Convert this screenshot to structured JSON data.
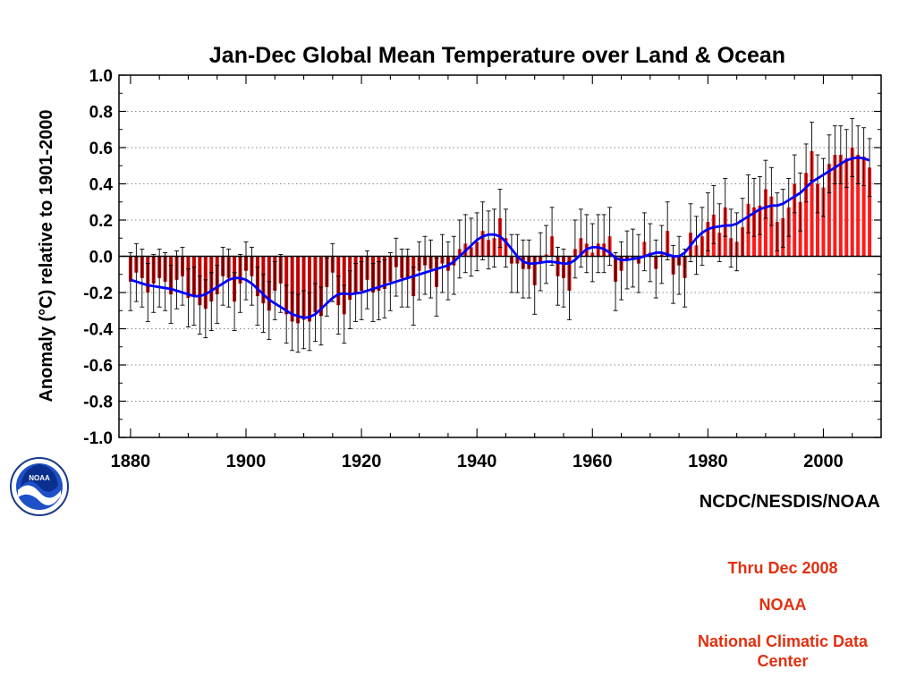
{
  "chart_data": {
    "type": "bar",
    "title": "Jan-Dec Global Mean Temperature over Land & Ocean",
    "ylabel": "Anomaly (°C) relative to 1901-2000",
    "xlabel": "",
    "credit": "NCDC/NESDIS/NOAA",
    "xlim": [
      1878,
      2010
    ],
    "ylim": [
      -1.0,
      1.0
    ],
    "x_ticks": [
      1880,
      1900,
      1920,
      1940,
      1960,
      1980,
      2000
    ],
    "y_ticks": [
      -1.0,
      -0.8,
      -0.6,
      -0.4,
      -0.2,
      0.0,
      0.2,
      0.4,
      0.6,
      0.8,
      1.0
    ],
    "grid": true,
    "years": [
      1880,
      1881,
      1882,
      1883,
      1884,
      1885,
      1886,
      1887,
      1888,
      1889,
      1890,
      1891,
      1892,
      1893,
      1894,
      1895,
      1896,
      1897,
      1898,
      1899,
      1900,
      1901,
      1902,
      1903,
      1904,
      1905,
      1906,
      1907,
      1908,
      1909,
      1910,
      1911,
      1912,
      1913,
      1914,
      1915,
      1916,
      1917,
      1918,
      1919,
      1920,
      1921,
      1922,
      1923,
      1924,
      1925,
      1926,
      1927,
      1928,
      1929,
      1930,
      1931,
      1932,
      1933,
      1934,
      1935,
      1936,
      1937,
      1938,
      1939,
      1940,
      1941,
      1942,
      1943,
      1944,
      1945,
      1946,
      1947,
      1948,
      1949,
      1950,
      1951,
      1952,
      1953,
      1954,
      1955,
      1956,
      1957,
      1958,
      1959,
      1960,
      1961,
      1962,
      1963,
      1964,
      1965,
      1966,
      1967,
      1968,
      1969,
      1970,
      1971,
      1972,
      1973,
      1974,
      1975,
      1976,
      1977,
      1978,
      1979,
      1980,
      1981,
      1982,
      1983,
      1984,
      1985,
      1986,
      1987,
      1988,
      1989,
      1990,
      1991,
      1992,
      1993,
      1994,
      1995,
      1996,
      1997,
      1998,
      1999,
      2000,
      2001,
      2002,
      2003,
      2004,
      2005,
      2006,
      2007,
      2008
    ],
    "anomalies": [
      -0.14,
      -0.09,
      -0.12,
      -0.2,
      -0.15,
      -0.12,
      -0.14,
      -0.21,
      -0.13,
      -0.11,
      -0.23,
      -0.22,
      -0.27,
      -0.29,
      -0.25,
      -0.21,
      -0.11,
      -0.12,
      -0.25,
      -0.15,
      -0.08,
      -0.11,
      -0.22,
      -0.26,
      -0.3,
      -0.19,
      -0.15,
      -0.32,
      -0.36,
      -0.37,
      -0.35,
      -0.36,
      -0.31,
      -0.33,
      -0.17,
      -0.09,
      -0.27,
      -0.32,
      -0.24,
      -0.2,
      -0.19,
      -0.13,
      -0.2,
      -0.19,
      -0.18,
      -0.14,
      -0.06,
      -0.12,
      -0.12,
      -0.22,
      -0.08,
      -0.05,
      -0.07,
      -0.17,
      -0.04,
      -0.08,
      -0.05,
      0.04,
      0.07,
      0.05,
      0.08,
      0.14,
      0.09,
      0.1,
      0.21,
      0.1,
      -0.04,
      -0.04,
      -0.07,
      -0.07,
      -0.16,
      -0.03,
      0.01,
      0.11,
      -0.11,
      -0.12,
      -0.19,
      0.04,
      0.1,
      0.07,
      0.02,
      0.07,
      0.07,
      0.11,
      -0.14,
      -0.08,
      -0.02,
      -0.01,
      -0.04,
      0.08,
      0.02,
      -0.07,
      0.01,
      0.14,
      -0.1,
      -0.05,
      -0.12,
      0.13,
      0.06,
      0.11,
      0.19,
      0.23,
      0.13,
      0.27,
      0.1,
      0.08,
      0.16,
      0.29,
      0.27,
      0.28,
      0.37,
      0.33,
      0.19,
      0.21,
      0.27,
      0.4,
      0.3,
      0.46,
      0.58,
      0.4,
      0.38,
      0.51,
      0.56,
      0.56,
      0.54,
      0.6,
      0.56,
      0.55,
      0.49
    ],
    "uncertainty": 0.16,
    "smoothed": [
      -0.13,
      -0.14,
      -0.15,
      -0.16,
      -0.165,
      -0.17,
      -0.175,
      -0.18,
      -0.19,
      -0.2,
      -0.21,
      -0.22,
      -0.22,
      -0.21,
      -0.19,
      -0.17,
      -0.15,
      -0.13,
      -0.12,
      -0.12,
      -0.13,
      -0.15,
      -0.18,
      -0.21,
      -0.24,
      -0.26,
      -0.28,
      -0.3,
      -0.32,
      -0.33,
      -0.34,
      -0.335,
      -0.32,
      -0.29,
      -0.26,
      -0.23,
      -0.21,
      -0.205,
      -0.21,
      -0.205,
      -0.2,
      -0.19,
      -0.18,
      -0.17,
      -0.16,
      -0.15,
      -0.14,
      -0.13,
      -0.12,
      -0.11,
      -0.1,
      -0.09,
      -0.08,
      -0.07,
      -0.06,
      -0.05,
      -0.03,
      0.0,
      0.03,
      0.06,
      0.09,
      0.11,
      0.12,
      0.12,
      0.11,
      0.08,
      0.04,
      0.0,
      -0.03,
      -0.04,
      -0.04,
      -0.035,
      -0.03,
      -0.03,
      -0.035,
      -0.04,
      -0.04,
      -0.02,
      0.01,
      0.04,
      0.05,
      0.05,
      0.04,
      0.02,
      -0.01,
      -0.02,
      -0.02,
      -0.015,
      -0.01,
      0.0,
      0.01,
      0.02,
      0.02,
      0.01,
      0.0,
      0.0,
      0.02,
      0.06,
      0.1,
      0.13,
      0.15,
      0.16,
      0.165,
      0.17,
      0.17,
      0.18,
      0.2,
      0.22,
      0.24,
      0.26,
      0.27,
      0.28,
      0.28,
      0.29,
      0.31,
      0.33,
      0.35,
      0.38,
      0.41,
      0.43,
      0.45,
      0.47,
      0.49,
      0.51,
      0.53,
      0.54,
      0.545,
      0.54,
      0.53
    ],
    "colors": {
      "positive_bar": "#ff1a1a",
      "negative_bar": "#c00000",
      "smoothed_line": "#0000ff",
      "error_bar": "#000000",
      "grid": "#888888"
    }
  },
  "logo": {
    "icon": "noaa-logo-icon",
    "text": "NOAA"
  },
  "captions": {
    "line1": "Thru Dec 2008",
    "line2": "NOAA",
    "line3": "National Climatic Data Center",
    "color": "#e03010"
  }
}
